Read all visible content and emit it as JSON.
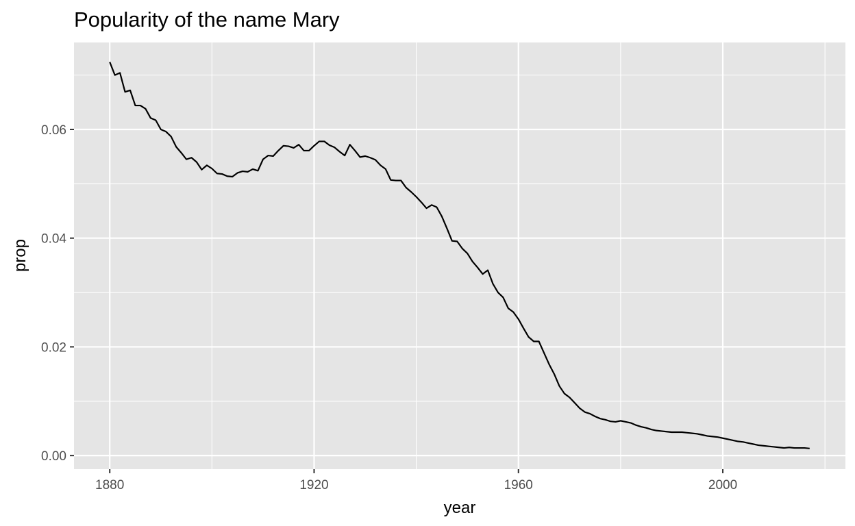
{
  "chart_data": {
    "type": "line",
    "title": "Popularity of the name Mary",
    "xlabel": "year",
    "ylabel": "prop",
    "xlim": [
      1873,
      2024
    ],
    "ylim": [
      -0.0025,
      0.076
    ],
    "x_ticks": [
      1880,
      1920,
      1960,
      2000
    ],
    "x_tick_labels": [
      "1880",
      "1920",
      "1960",
      "2000"
    ],
    "x_minor_ticks": [
      1900,
      1940,
      1980,
      2020
    ],
    "y_ticks": [
      0,
      0.02,
      0.04,
      0.06
    ],
    "y_tick_labels": [
      "0.00",
      "0.02",
      "0.04",
      "0.06"
    ],
    "y_minor_ticks": [
      0.01,
      0.03,
      0.05,
      0.07
    ],
    "grid": true,
    "colors": {
      "panel": "#e5e5e5",
      "grid": "#ffffff",
      "line": "#000000",
      "tick_text": "#4d4d4d"
    },
    "series": [
      {
        "x": [
          1880,
          1881,
          1882,
          1883,
          1884,
          1885,
          1886,
          1887,
          1888,
          1889,
          1890,
          1891,
          1892,
          1893,
          1894,
          1895,
          1896,
          1897,
          1898,
          1899,
          1900,
          1901,
          1902,
          1903,
          1904,
          1905,
          1906,
          1907,
          1908,
          1909,
          1910,
          1911,
          1912,
          1913,
          1914,
          1915,
          1916,
          1917,
          1918,
          1919,
          1920,
          1921,
          1922,
          1923,
          1924,
          1925,
          1926,
          1927,
          1928,
          1929,
          1930,
          1931,
          1932,
          1933,
          1934,
          1935,
          1936,
          1937,
          1938,
          1939,
          1940,
          1941,
          1942,
          1943,
          1944,
          1945,
          1946,
          1947,
          1948,
          1949,
          1950,
          1951,
          1952,
          1953,
          1954,
          1955,
          1956,
          1957,
          1958,
          1959,
          1960,
          1961,
          1962,
          1963,
          1964,
          1965,
          1966,
          1967,
          1968,
          1969,
          1970,
          1971,
          1972,
          1973,
          1974,
          1975,
          1976,
          1977,
          1978,
          1979,
          1980,
          1981,
          1982,
          1983,
          1984,
          1985,
          1986,
          1987,
          1988,
          1989,
          1990,
          1991,
          1992,
          1993,
          1994,
          1995,
          1996,
          1997,
          1998,
          1999,
          2000,
          2001,
          2002,
          2003,
          2004,
          2005,
          2006,
          2007,
          2008,
          2009,
          2010,
          2011,
          2012,
          2013,
          2014,
          2015,
          2016,
          2017
        ],
        "y": [
          0.0724,
          0.07,
          0.0704,
          0.0669,
          0.0672,
          0.0644,
          0.0644,
          0.0638,
          0.0621,
          0.0617,
          0.06,
          0.0596,
          0.0587,
          0.0568,
          0.0557,
          0.0545,
          0.0548,
          0.054,
          0.0526,
          0.0534,
          0.0528,
          0.0519,
          0.0518,
          0.0514,
          0.0513,
          0.052,
          0.0523,
          0.0522,
          0.0527,
          0.0524,
          0.0545,
          0.0552,
          0.0551,
          0.0561,
          0.057,
          0.0569,
          0.0566,
          0.0572,
          0.0561,
          0.0561,
          0.057,
          0.0578,
          0.0578,
          0.0571,
          0.0567,
          0.0559,
          0.0552,
          0.0572,
          0.0561,
          0.0549,
          0.0551,
          0.0548,
          0.0544,
          0.0534,
          0.0527,
          0.0507,
          0.0506,
          0.0506,
          0.0493,
          0.0485,
          0.0476,
          0.0466,
          0.0455,
          0.0461,
          0.0457,
          0.044,
          0.0418,
          0.0395,
          0.0394,
          0.0381,
          0.0372,
          0.0357,
          0.0346,
          0.0334,
          0.0341,
          0.0316,
          0.03,
          0.0291,
          0.0271,
          0.0264,
          0.0251,
          0.0234,
          0.0218,
          0.021,
          0.021,
          0.0189,
          0.0168,
          0.015,
          0.0128,
          0.0114,
          0.0107,
          0.0097,
          0.0087,
          0.008,
          0.0077,
          0.0072,
          0.0068,
          0.0066,
          0.0063,
          0.0062,
          0.0064,
          0.0062,
          0.006,
          0.0056,
          0.0053,
          0.0051,
          0.0048,
          0.0046,
          0.0045,
          0.0044,
          0.0043,
          0.0043,
          0.0043,
          0.0042,
          0.0041,
          0.004,
          0.0038,
          0.0036,
          0.0035,
          0.0034,
          0.0032,
          0.003,
          0.0028,
          0.0026,
          0.0025,
          0.0023,
          0.0021,
          0.0019,
          0.0018,
          0.0017,
          0.0016,
          0.0015,
          0.0014,
          0.0015,
          0.0014,
          0.0014,
          0.0014,
          0.0013
        ]
      }
    ]
  }
}
